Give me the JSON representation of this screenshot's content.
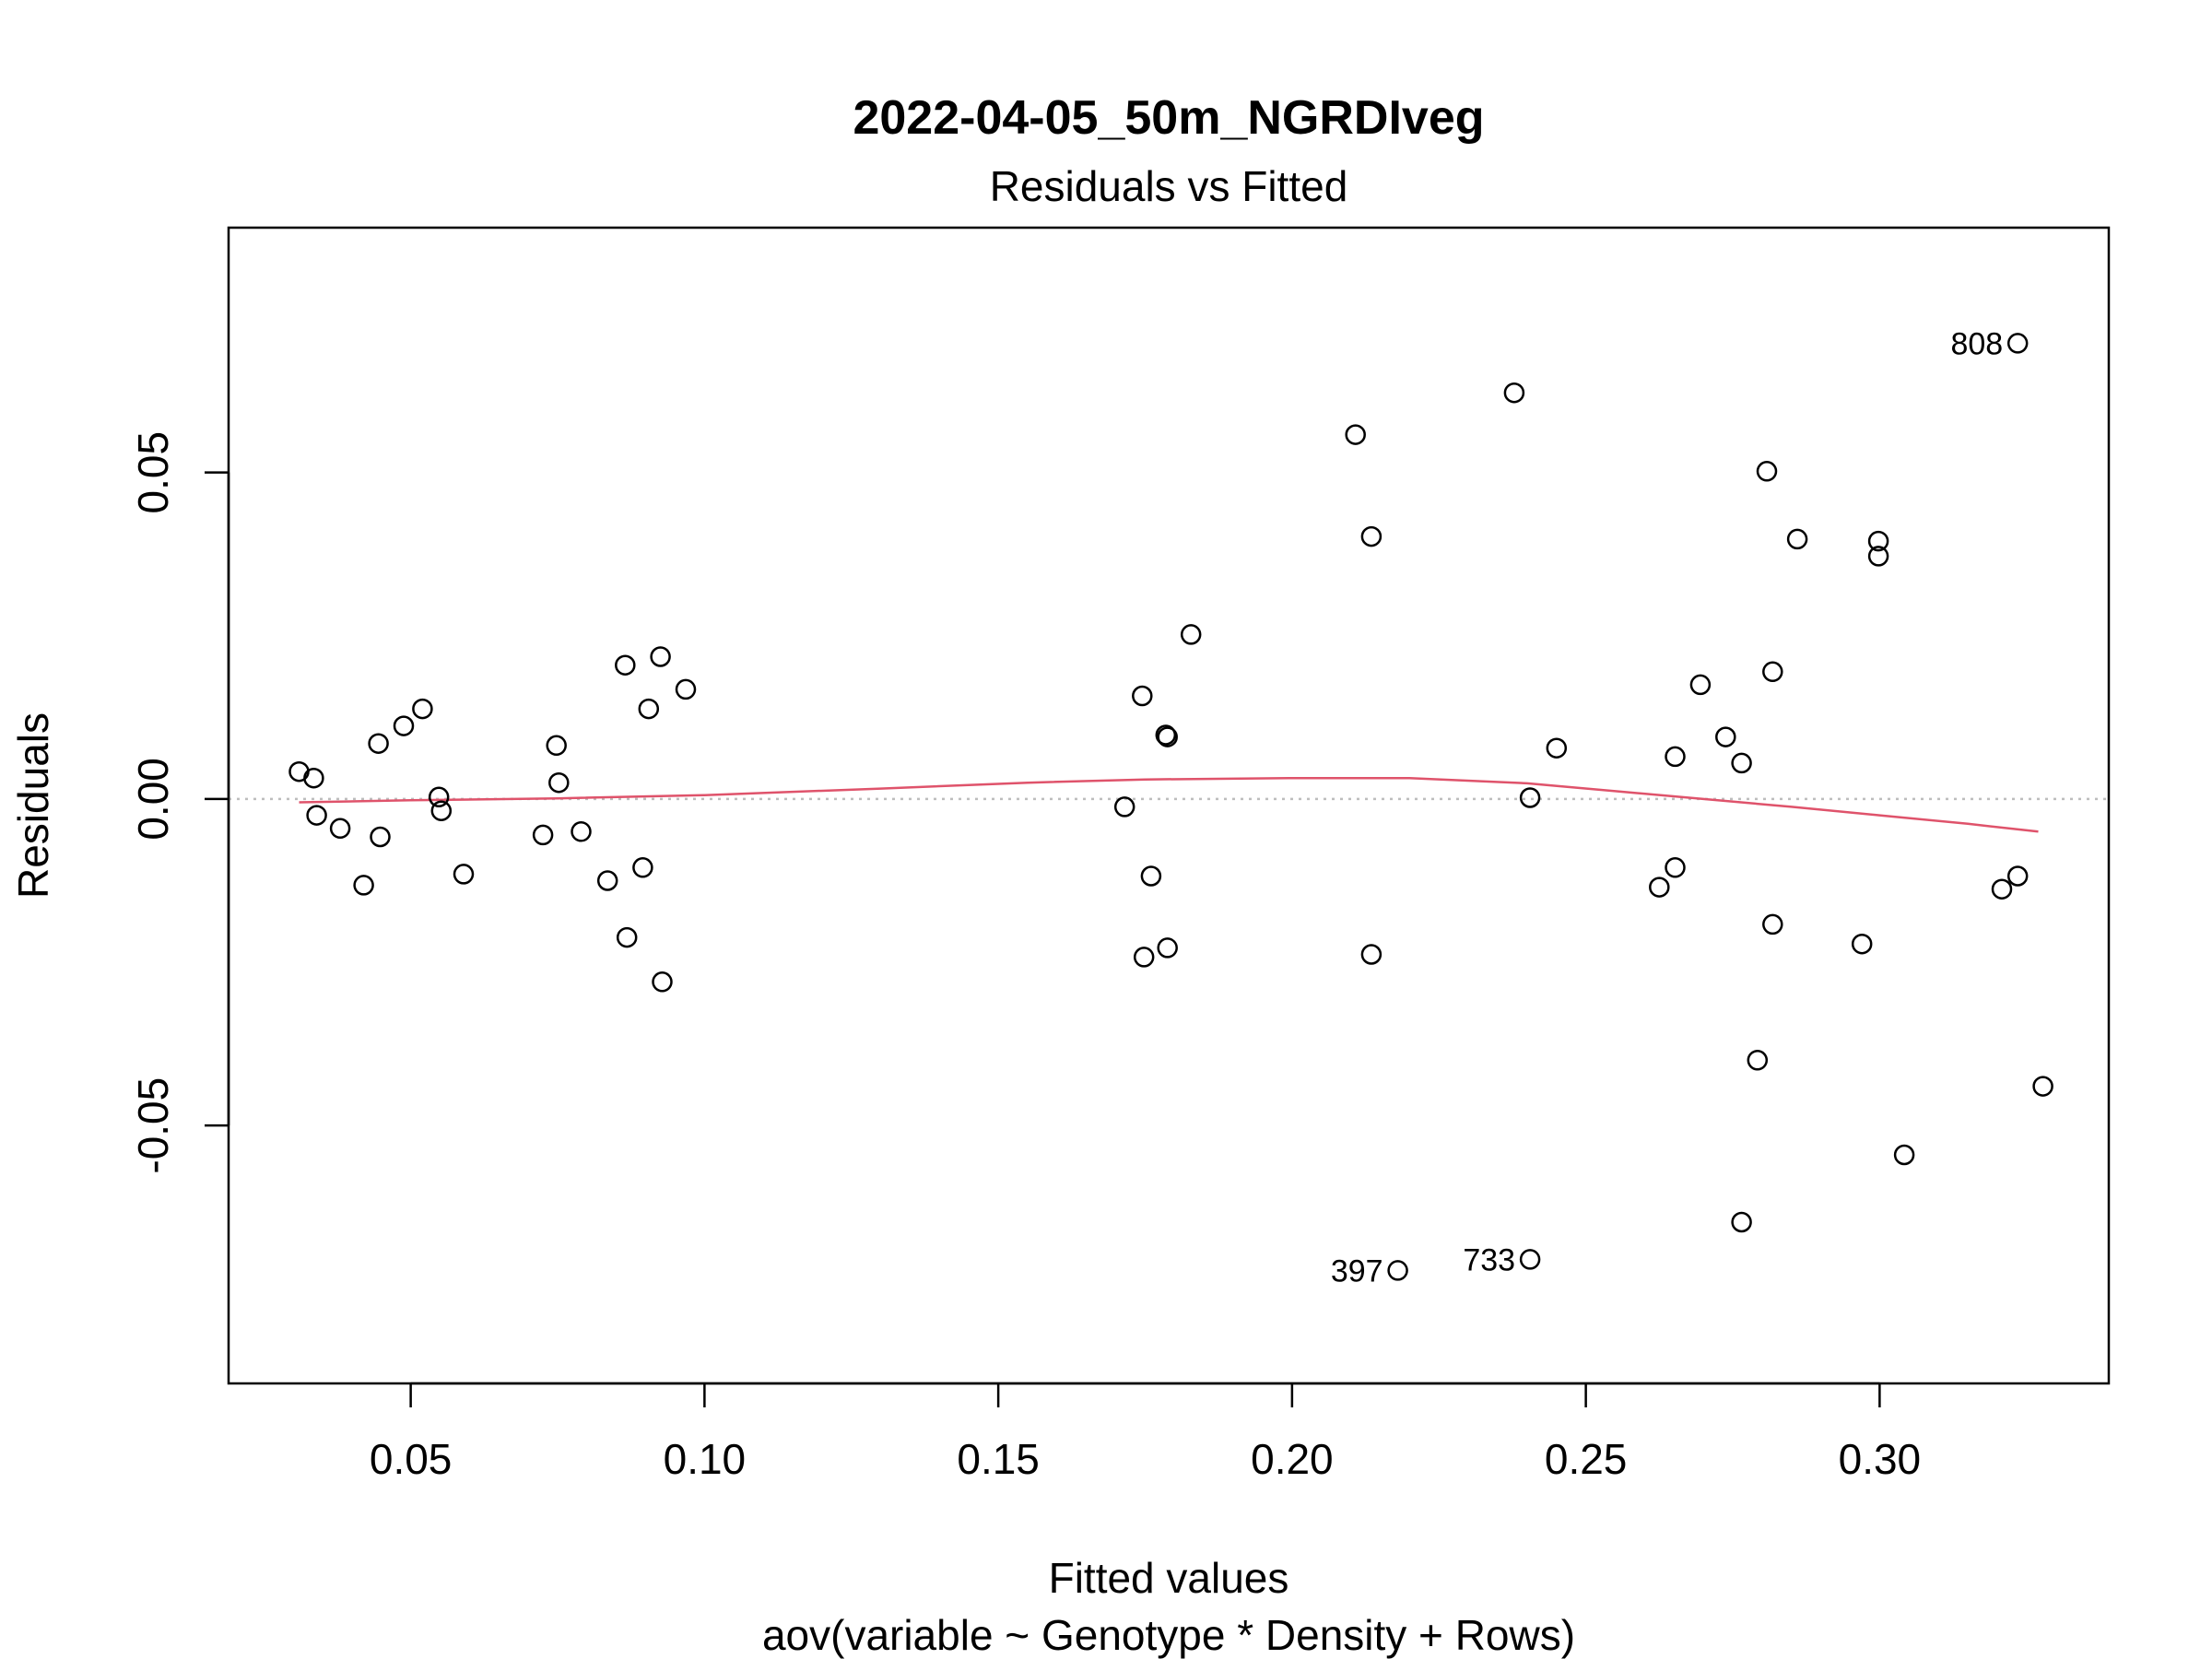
{
  "chart_data": {
    "type": "scatter",
    "title": "2022-04-05_50m_NGRDIveg",
    "subtitle": "Residuals vs Fitted",
    "xlabel": "Fitted values",
    "xlabel2": "aov(variable ~ Genotype * Density + Rows)",
    "ylabel": "Residuals",
    "xlim": [
      0.019,
      0.339
    ],
    "ylim": [
      -0.0895,
      0.0875
    ],
    "x_ticks": [
      0.05,
      0.1,
      0.15,
      0.2,
      0.25,
      0.3
    ],
    "x_tick_labels": [
      "0.05",
      "0.10",
      "0.15",
      "0.20",
      "0.25",
      "0.30"
    ],
    "y_ticks": [
      -0.05,
      0.0,
      0.05
    ],
    "y_tick_labels": [
      "-0.05",
      "0.00",
      "0.05"
    ],
    "reference_line": {
      "y": 0,
      "style": "dotted",
      "color": "#bdbdbd"
    },
    "smooth_line": {
      "color": "#DF536B",
      "points": [
        [
          0.031,
          -0.0005
        ],
        [
          0.05,
          -0.0002
        ],
        [
          0.075,
          0.0001
        ],
        [
          0.1,
          0.0006
        ],
        [
          0.13,
          0.0016
        ],
        [
          0.155,
          0.0025
        ],
        [
          0.175,
          0.003
        ],
        [
          0.2,
          0.0032
        ],
        [
          0.22,
          0.0032
        ],
        [
          0.24,
          0.0024
        ],
        [
          0.255,
          0.0012
        ],
        [
          0.27,
          0.0
        ],
        [
          0.285,
          -0.0012
        ],
        [
          0.3,
          -0.0025
        ],
        [
          0.315,
          -0.0038
        ],
        [
          0.327,
          -0.005
        ]
      ]
    },
    "grid": false,
    "legend": "none",
    "point_color": "#000000",
    "points": [
      [
        0.031,
        0.0042
      ],
      [
        0.0335,
        0.0032
      ],
      [
        0.034,
        -0.0025
      ],
      [
        0.038,
        -0.0045
      ],
      [
        0.042,
        -0.0132
      ],
      [
        0.0445,
        0.0085
      ],
      [
        0.0448,
        -0.0058
      ],
      [
        0.0488,
        0.0112
      ],
      [
        0.052,
        0.0138
      ],
      [
        0.0548,
        0.0003
      ],
      [
        0.0552,
        -0.0018
      ],
      [
        0.059,
        -0.0115
      ],
      [
        0.0725,
        -0.0055
      ],
      [
        0.0748,
        0.0082
      ],
      [
        0.0752,
        0.0025
      ],
      [
        0.079,
        -0.005
      ],
      [
        0.0835,
        -0.0125
      ],
      [
        0.0865,
        0.0205
      ],
      [
        0.0868,
        -0.0212
      ],
      [
        0.0895,
        -0.0105
      ],
      [
        0.0905,
        0.0138
      ],
      [
        0.0925,
        0.0218
      ],
      [
        0.0928,
        -0.028
      ],
      [
        0.0968,
        0.0168
      ],
      [
        0.1715,
        -0.0012
      ],
      [
        0.1745,
        0.0158
      ],
      [
        0.1748,
        -0.0242
      ],
      [
        0.176,
        -0.0118
      ],
      [
        0.1785,
        0.0098
      ],
      [
        0.1788,
        0.0095
      ],
      [
        0.1788,
        -0.0228
      ],
      [
        0.1828,
        0.0252
      ],
      [
        0.2108,
        0.0558
      ],
      [
        0.2135,
        0.0402
      ],
      [
        0.2135,
        -0.0238
      ],
      [
        0.218,
        -0.0722
      ],
      [
        0.2378,
        0.0622
      ],
      [
        0.2405,
        0.0002
      ],
      [
        0.2405,
        -0.0705
      ],
      [
        0.245,
        0.0078
      ],
      [
        0.2625,
        -0.0135
      ],
      [
        0.2652,
        0.0065
      ],
      [
        0.2652,
        -0.0105
      ],
      [
        0.2695,
        0.0175
      ],
      [
        0.2738,
        0.0095
      ],
      [
        0.2765,
        0.0055
      ],
      [
        0.2765,
        -0.0648
      ],
      [
        0.2792,
        -0.04
      ],
      [
        0.2808,
        0.0502
      ],
      [
        0.2818,
        0.0195
      ],
      [
        0.2818,
        -0.0192
      ],
      [
        0.286,
        0.0398
      ],
      [
        0.297,
        -0.0222
      ],
      [
        0.2998,
        0.0395
      ],
      [
        0.2998,
        0.0372
      ],
      [
        0.3042,
        -0.0545
      ],
      [
        0.3208,
        -0.0138
      ],
      [
        0.3235,
        0.0698
      ],
      [
        0.3235,
        -0.0118
      ],
      [
        0.3278,
        -0.044
      ]
    ],
    "annotations": [
      {
        "label": "808",
        "x": 0.3235,
        "y": 0.0698
      },
      {
        "label": "397",
        "x": 0.218,
        "y": -0.0722
      },
      {
        "label": "733",
        "x": 0.2405,
        "y": -0.0705
      }
    ]
  }
}
